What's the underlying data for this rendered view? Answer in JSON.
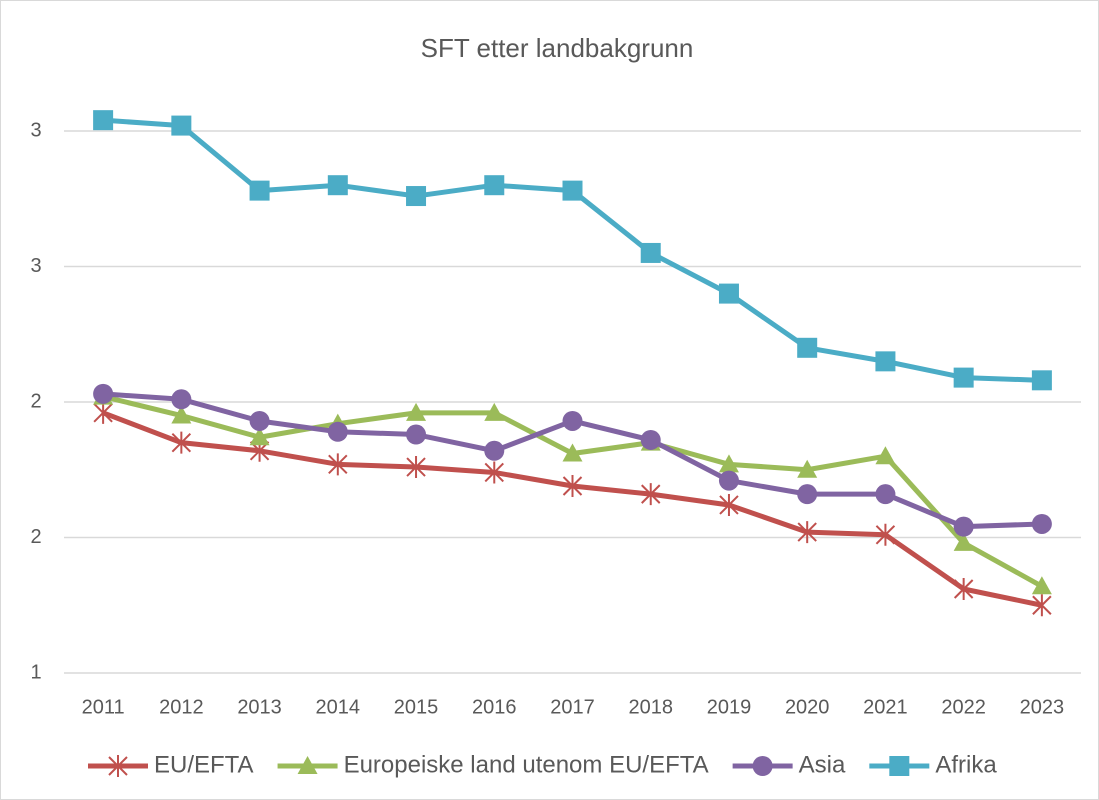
{
  "chart_data": {
    "type": "line",
    "title": "SFT etter landbakgrunn",
    "categories": [
      "2011",
      "2012",
      "2013",
      "2014",
      "2015",
      "2016",
      "2017",
      "2018",
      "2019",
      "2020",
      "2021",
      "2022",
      "2023"
    ],
    "series": [
      {
        "name": "EU/EFTA",
        "color": "#c0504d",
        "marker": "star",
        "values": [
          1.96,
          1.85,
          1.82,
          1.77,
          1.76,
          1.74,
          1.69,
          1.66,
          1.62,
          1.52,
          1.51,
          1.31,
          1.25
        ]
      },
      {
        "name": "Europeiske land utenom EU/EFTA",
        "color": "#9bbb59",
        "marker": "triangle",
        "values": [
          2.02,
          1.95,
          1.87,
          1.92,
          1.96,
          1.96,
          1.81,
          1.85,
          1.77,
          1.75,
          1.8,
          1.48,
          1.32
        ]
      },
      {
        "name": "Asia",
        "color": "#8064a2",
        "marker": "circle",
        "values": [
          2.03,
          2.01,
          1.93,
          1.89,
          1.88,
          1.82,
          1.93,
          1.86,
          1.71,
          1.66,
          1.66,
          1.54,
          1.55
        ]
      },
      {
        "name": "Afrika",
        "color": "#4bacc6",
        "marker": "square",
        "values": [
          3.04,
          3.02,
          2.78,
          2.8,
          2.76,
          2.8,
          2.78,
          2.55,
          2.4,
          2.2,
          2.15,
          2.09,
          2.08
        ]
      }
    ],
    "ylim": [
      1,
      3.2
    ],
    "yticks": [
      1,
      {
        "value": 1.5,
        "label": "2"
      },
      2,
      {
        "value": 2.5,
        "label": "3"
      },
      3
    ],
    "grid": true,
    "legend": "bottom"
  }
}
